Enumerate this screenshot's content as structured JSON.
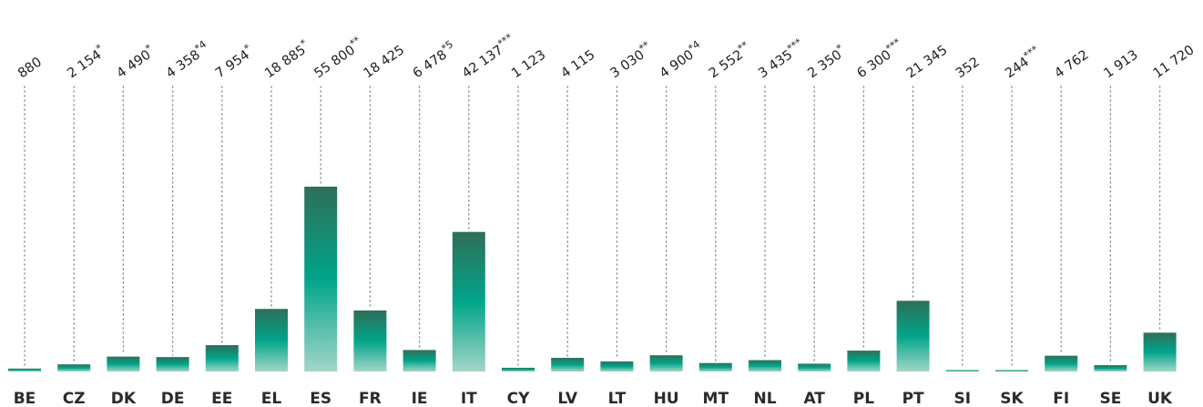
{
  "chart_data": {
    "type": "bar",
    "title": "",
    "xlabel": "",
    "ylabel": "",
    "categories": [
      "BE",
      "CZ",
      "DK",
      "DE",
      "EE",
      "EL",
      "ES",
      "FR",
      "IE",
      "IT",
      "CY",
      "LV",
      "LT",
      "HU",
      "MT",
      "NL",
      "AT",
      "PL",
      "PT",
      "SI",
      "SK",
      "FI",
      "SE",
      "UK"
    ],
    "values": [
      880,
      2154,
      4490,
      4358,
      7954,
      18885,
      55800,
      18425,
      6478,
      42137,
      1123,
      4115,
      3030,
      4900,
      2552,
      3435,
      2350,
      6300,
      21345,
      352,
      244,
      4762,
      1913,
      11720
    ],
    "value_labels": [
      "880",
      "2 154",
      "4 490",
      "4 358",
      "7 954",
      "18 885",
      "55 800",
      "18 425",
      "6 478",
      "42 137",
      "1 123",
      "4 115",
      "3 030",
      "4 900",
      "2 552",
      "3 435",
      "2 350",
      "6 300",
      "21 345",
      "352",
      "244",
      "4 762",
      "1 913",
      "11 720"
    ],
    "footnote_marks": [
      "",
      "*",
      "*",
      "*4",
      "*",
      "*",
      "**",
      "",
      "*5",
      "***",
      "",
      "",
      "**",
      "*4",
      "**",
      "***",
      "*",
      "***",
      "",
      "",
      "***",
      "",
      "",
      ""
    ],
    "ylim": [
      0,
      60000
    ],
    "grid": false,
    "legend": "none",
    "colors": {
      "bar_top": "#2f6e58",
      "bar_mid": "#00a58a",
      "bar_bottom": "#a3d6c8",
      "guide": "#8a8a8a",
      "text": "#1f1f1f"
    }
  }
}
